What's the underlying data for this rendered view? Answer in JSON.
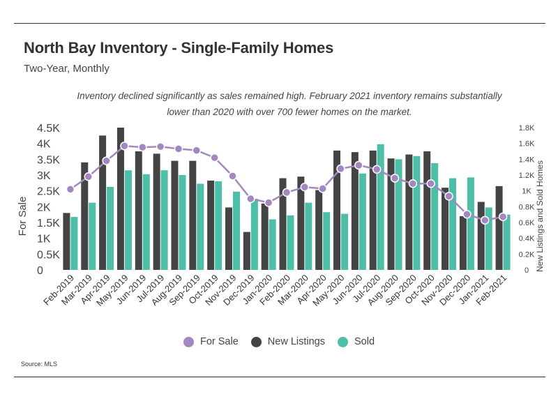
{
  "header": {
    "title": "North Bay Inventory - Single-Family Homes",
    "subtitle": "Two-Year, Monthly"
  },
  "annotation": {
    "line1": "Inventory declined significantly as sales remained high. February 2021 inventory remains substantially",
    "line2": "lower than 2020 with over 700 fewer homes on the market."
  },
  "legend": [
    {
      "label": "For Sale",
      "color": "#a387c0"
    },
    {
      "label": "New Listings",
      "color": "#444444"
    },
    {
      "label": "Sold",
      "color": "#4dbfa8"
    }
  ],
  "source": "Source:  MLS",
  "chart_data": {
    "type": "bar",
    "categories": [
      "Feb-2019",
      "Mar-2019",
      "Apr-2019",
      "May-2019",
      "Jun-2019",
      "Jul-2019",
      "Aug-2019",
      "Sep-2019",
      "Oct-2019",
      "Nov-2019",
      "Dec-2019",
      "Jan-2020",
      "Feb-2020",
      "Mar-2020",
      "Apr-2020",
      "May-2020",
      "Jun-2020",
      "Jul-2020",
      "Aug-2020",
      "Sep-2020",
      "Oct-2020",
      "Nov-2020",
      "Dec-2020",
      "Jan-2021",
      "Feb-2021"
    ],
    "ylabel_left": "For Sale",
    "ylabel_right": "New Listings and Sold Homes",
    "left_axis": {
      "ylim": [
        0,
        4500
      ],
      "ticks": [
        "0",
        "0.5K",
        "1K",
        "1.5K",
        "2K",
        "2.5K",
        "3K",
        "3.5K",
        "4K",
        "4.5K"
      ]
    },
    "right_axis": {
      "ylim": [
        0,
        1800
      ],
      "ticks": [
        "0",
        "0.2K",
        "0.4K",
        "0.6K",
        "0.8K",
        "1K",
        "1.2K",
        "1.4K",
        "1.6K",
        "1.8K"
      ]
    },
    "series": [
      {
        "name": "New Listings",
        "type": "bar",
        "axis": "right",
        "values": [
          720,
          1360,
          1700,
          1800,
          1500,
          1470,
          1380,
          1380,
          1130,
          790,
          480,
          840,
          1160,
          1180,
          1010,
          1510,
          1490,
          1510,
          1410,
          1460,
          1500,
          1040,
          680,
          860,
          1060
        ]
      },
      {
        "name": "Sold",
        "type": "bar",
        "axis": "right",
        "values": [
          670,
          850,
          1050,
          1260,
          1210,
          1260,
          1200,
          1090,
          1120,
          990,
          900,
          640,
          690,
          850,
          730,
          710,
          1220,
          1590,
          1400,
          1440,
          1350,
          1160,
          1170,
          790,
          700
        ]
      },
      {
        "name": "For Sale",
        "type": "line",
        "axis": "left",
        "values": [
          2550,
          2950,
          3450,
          3920,
          3880,
          3900,
          3830,
          3780,
          3550,
          2970,
          2250,
          2130,
          2450,
          2620,
          2570,
          3200,
          3310,
          3180,
          2900,
          2730,
          2730,
          2330,
          1760,
          1570,
          1680
        ]
      }
    ]
  }
}
